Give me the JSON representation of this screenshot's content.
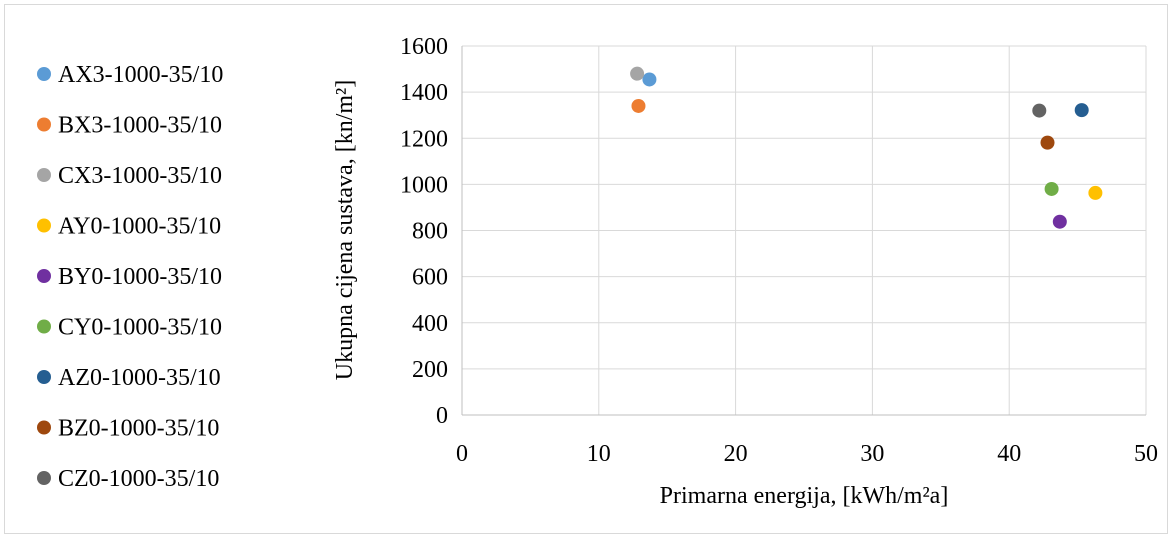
{
  "chart_data": {
    "type": "scatter",
    "title": "",
    "xlabel": "Primarna energija, [kWh/m²a]",
    "ylabel": "Ukupna cijena sustava, [kn/m²]",
    "xlim": [
      0,
      50
    ],
    "ylim": [
      0,
      1600
    ],
    "x_ticks": [
      "0",
      "10",
      "20",
      "30",
      "40",
      "50"
    ],
    "y_ticks": [
      "0",
      "200",
      "400",
      "600",
      "800",
      "1000",
      "1200",
      "1400",
      "1600"
    ],
    "grid": "vertical and horizontal",
    "legend_position": "left",
    "series": [
      {
        "name": "AX3-1000-35/10",
        "color": "#5b9bd5",
        "x": 13.7,
        "y": 1455
      },
      {
        "name": "BX3-1000-35/10",
        "color": "#ed7d31",
        "x": 12.9,
        "y": 1340
      },
      {
        "name": "CX3-1000-35/10",
        "color": "#a5a5a5",
        "x": 12.8,
        "y": 1480
      },
      {
        "name": "AY0-1000-35/10",
        "color": "#ffc000",
        "x": 46.3,
        "y": 963
      },
      {
        "name": "BY0-1000-35/10",
        "color": "#7030a0",
        "x": 43.7,
        "y": 838
      },
      {
        "name": "CY0-1000-35/10",
        "color": "#70ad47",
        "x": 43.1,
        "y": 980
      },
      {
        "name": "AZ0-1000-35/10",
        "color": "#255e91",
        "x": 45.3,
        "y": 1322
      },
      {
        "name": "BZ0-1000-35/10",
        "color": "#9e480e",
        "x": 42.8,
        "y": 1181
      },
      {
        "name": "CZ0-1000-35/10",
        "color": "#636363",
        "x": 42.2,
        "y": 1320
      }
    ]
  }
}
